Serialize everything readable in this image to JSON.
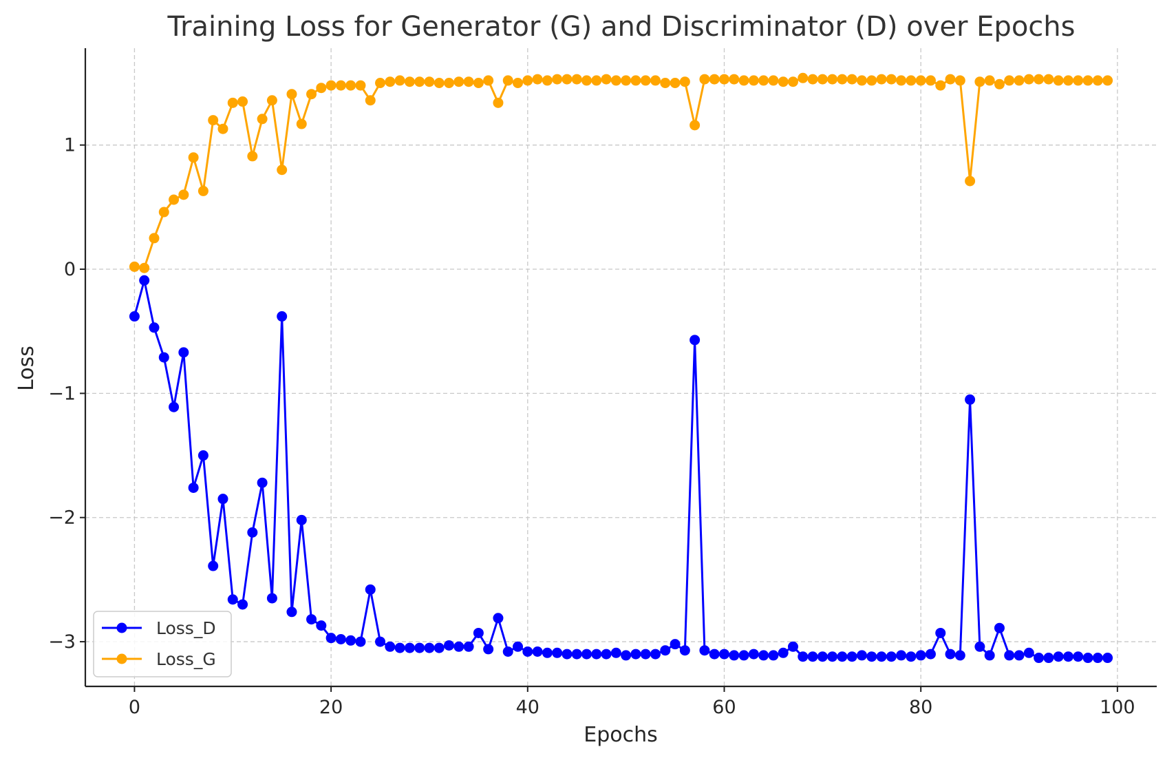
{
  "chart_data": {
    "type": "line",
    "title": "Training Loss for Generator (G) and Discriminator (D) over Epochs",
    "xlabel": "Epochs",
    "ylabel": "Loss",
    "xlim": [
      -5,
      104
    ],
    "ylim": [
      -3.36,
      1.78
    ],
    "xticks": [
      0,
      20,
      40,
      60,
      80,
      100
    ],
    "yticks": [
      1,
      0,
      -1,
      -2,
      -3
    ],
    "ytick_labels": [
      "1",
      "0",
      "−1",
      "−2",
      "−3"
    ],
    "grid": true,
    "legend_position": "lower-left",
    "x": [
      0,
      1,
      2,
      3,
      4,
      5,
      6,
      7,
      8,
      9,
      10,
      11,
      12,
      13,
      14,
      15,
      16,
      17,
      18,
      19,
      20,
      21,
      22,
      23,
      24,
      25,
      26,
      27,
      28,
      29,
      30,
      31,
      32,
      33,
      34,
      35,
      36,
      37,
      38,
      39,
      40,
      41,
      42,
      43,
      44,
      45,
      46,
      47,
      48,
      49,
      50,
      51,
      52,
      53,
      54,
      55,
      56,
      57,
      58,
      59,
      60,
      61,
      62,
      63,
      64,
      65,
      66,
      67,
      68,
      69,
      70,
      71,
      72,
      73,
      74,
      75,
      76,
      77,
      78,
      79,
      80,
      81,
      82,
      83,
      84,
      85,
      86,
      87,
      88,
      89,
      90,
      91,
      92,
      93,
      94,
      95,
      96,
      97,
      98,
      99
    ],
    "series": [
      {
        "name": "Loss_D",
        "color": "#0000ff",
        "values": [
          -0.38,
          -0.09,
          -0.47,
          -0.71,
          -1.11,
          -0.67,
          -1.76,
          -1.5,
          -2.39,
          -1.85,
          -2.66,
          -2.7,
          -2.12,
          -1.72,
          -2.65,
          -0.38,
          -2.76,
          -2.02,
          -2.82,
          -2.87,
          -2.97,
          -2.98,
          -2.99,
          -3.0,
          -2.58,
          -3.0,
          -3.04,
          -3.05,
          -3.05,
          -3.05,
          -3.05,
          -3.05,
          -3.03,
          -3.04,
          -3.04,
          -2.93,
          -3.06,
          -2.81,
          -3.08,
          -3.04,
          -3.08,
          -3.08,
          -3.09,
          -3.09,
          -3.1,
          -3.1,
          -3.1,
          -3.1,
          -3.1,
          -3.09,
          -3.11,
          -3.1,
          -3.1,
          -3.1,
          -3.07,
          -3.02,
          -3.07,
          -0.57,
          -3.07,
          -3.1,
          -3.1,
          -3.11,
          -3.11,
          -3.1,
          -3.11,
          -3.11,
          -3.09,
          -3.04,
          -3.12,
          -3.12,
          -3.12,
          -3.12,
          -3.12,
          -3.12,
          -3.11,
          -3.12,
          -3.12,
          -3.12,
          -3.11,
          -3.12,
          -3.11,
          -3.1,
          -2.93,
          -3.1,
          -3.11,
          -1.05,
          -3.04,
          -3.11,
          -2.89,
          -3.11,
          -3.11,
          -3.09,
          -3.13,
          -3.13,
          -3.12,
          -3.12,
          -3.12,
          -3.13,
          -3.13,
          -3.13
        ]
      },
      {
        "name": "Loss_G",
        "color": "#ffa500",
        "values": [
          0.02,
          0.01,
          0.25,
          0.46,
          0.56,
          0.6,
          0.9,
          0.63,
          1.2,
          1.13,
          1.34,
          1.35,
          0.91,
          1.21,
          1.36,
          0.8,
          1.41,
          1.17,
          1.41,
          1.46,
          1.48,
          1.48,
          1.48,
          1.48,
          1.36,
          1.5,
          1.51,
          1.52,
          1.51,
          1.51,
          1.51,
          1.5,
          1.5,
          1.51,
          1.51,
          1.5,
          1.52,
          1.34,
          1.52,
          1.5,
          1.52,
          1.53,
          1.52,
          1.53,
          1.53,
          1.53,
          1.52,
          1.52,
          1.53,
          1.52,
          1.52,
          1.52,
          1.52,
          1.52,
          1.5,
          1.5,
          1.51,
          1.16,
          1.53,
          1.53,
          1.53,
          1.53,
          1.52,
          1.52,
          1.52,
          1.52,
          1.51,
          1.51,
          1.54,
          1.53,
          1.53,
          1.53,
          1.53,
          1.53,
          1.52,
          1.52,
          1.53,
          1.53,
          1.52,
          1.52,
          1.52,
          1.52,
          1.48,
          1.53,
          1.52,
          0.71,
          1.51,
          1.52,
          1.49,
          1.52,
          1.52,
          1.53,
          1.53,
          1.53,
          1.52,
          1.52,
          1.52,
          1.52,
          1.52,
          1.52
        ]
      }
    ]
  }
}
